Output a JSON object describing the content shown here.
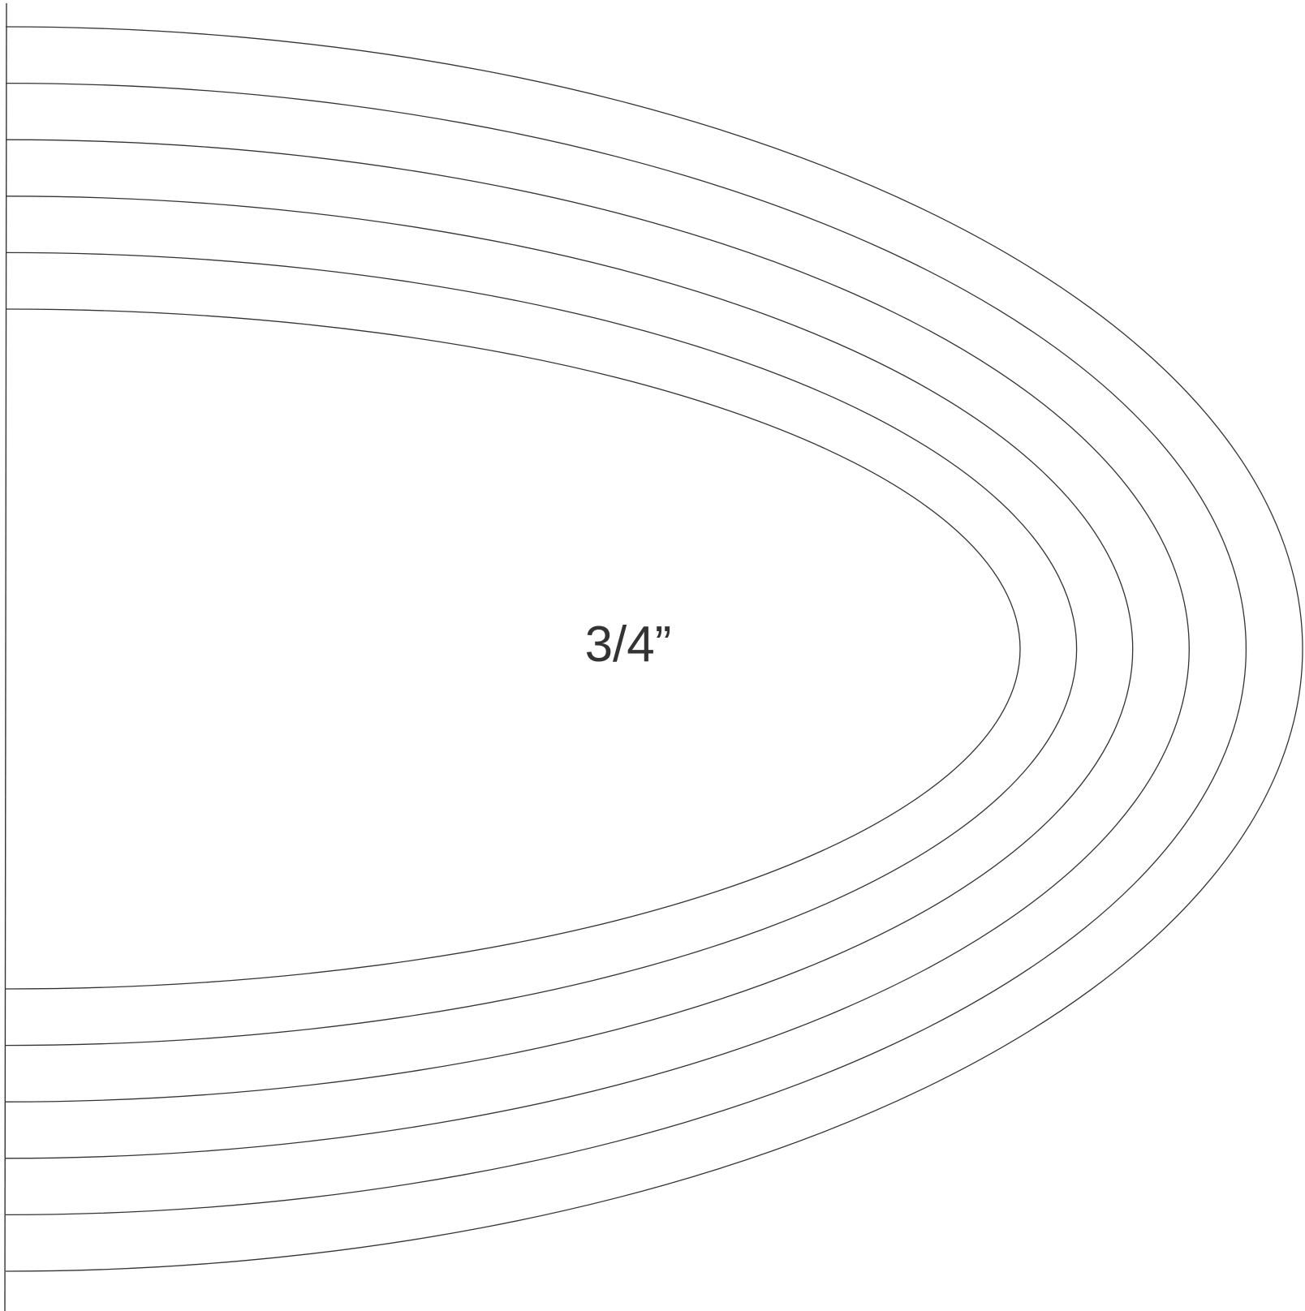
{
  "template": {
    "label": "3/4”",
    "stroke_color": "#333333",
    "background_color": "#ffffff",
    "curve_count": 6
  }
}
